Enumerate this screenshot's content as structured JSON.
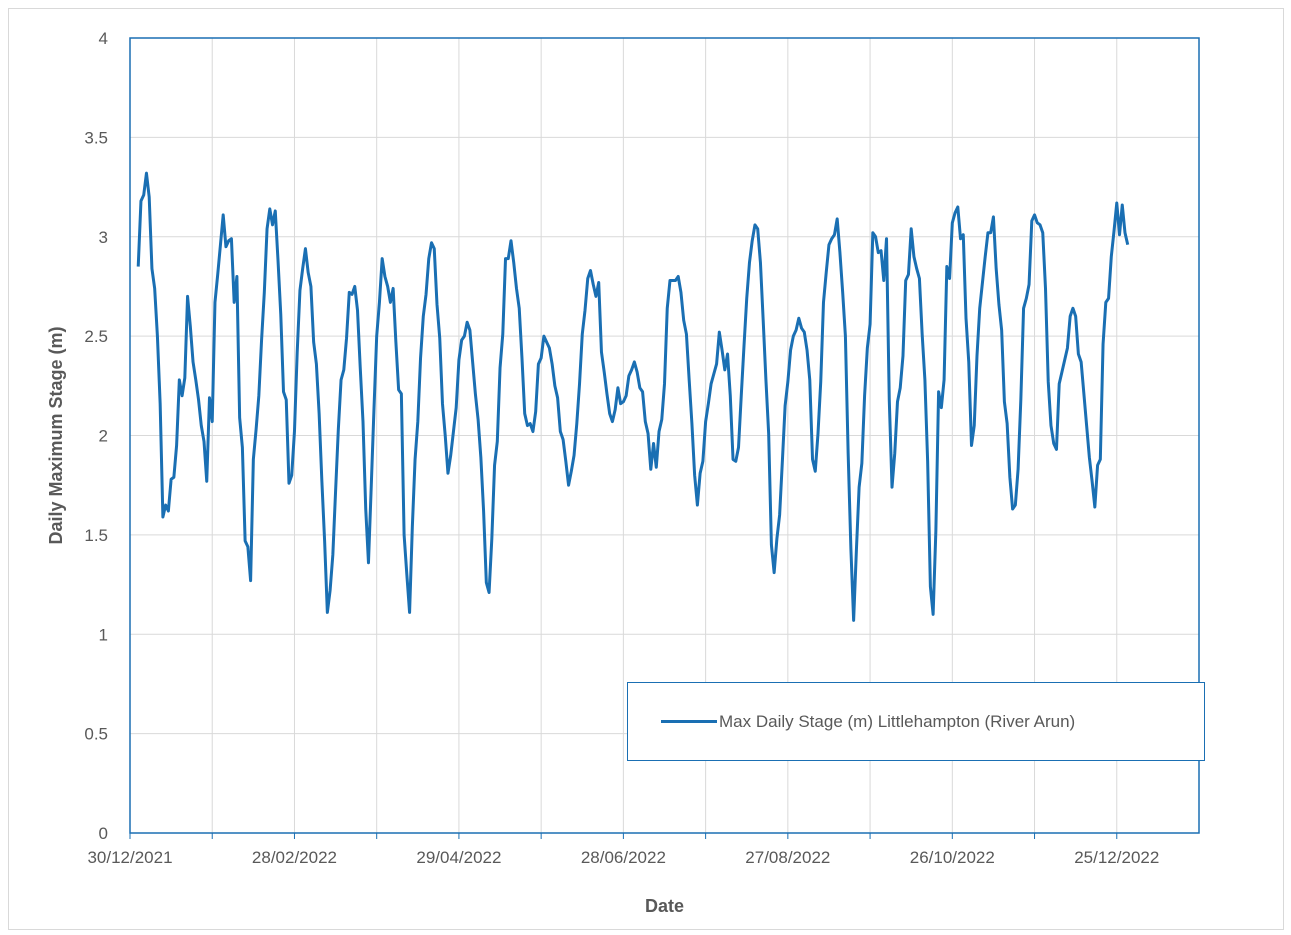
{
  "colors": {
    "series": "#1a6fb3",
    "gridline": "#d9d9d9",
    "plot_border": "#1a6fb3",
    "text": "#595959"
  },
  "chart_data": {
    "type": "line",
    "title": "",
    "xlabel": "Date",
    "ylabel": "Daily Maximum Stage (m)",
    "ylim": [
      0,
      4
    ],
    "y_ticks": [
      "0",
      "0.5",
      "1",
      "1.5",
      "2",
      "2.5",
      "3",
      "3.5",
      "4"
    ],
    "xlim": [
      "2021-12-30",
      "2023-01-24"
    ],
    "x_ticks": [
      "30/12/2021",
      "28/02/2022",
      "29/04/2022",
      "28/06/2022",
      "27/08/2022",
      "26/10/2022",
      "25/12/2022"
    ],
    "grid": "vertical and horizontal",
    "legend_position": "bottom-right",
    "series": [
      {
        "name": "Max Daily Stage (m) Littlehampton (River Arun)",
        "x": [
          "2022-01-02",
          "2022-01-03",
          "2022-01-04",
          "2022-01-05",
          "2022-01-06",
          "2022-01-07",
          "2022-01-08",
          "2022-01-09",
          "2022-01-10",
          "2022-01-11",
          "2022-01-12",
          "2022-01-13",
          "2022-01-14",
          "2022-01-15",
          "2022-01-16",
          "2022-01-17",
          "2022-01-18",
          "2022-01-19",
          "2022-01-20",
          "2022-01-21",
          "2022-01-22",
          "2022-01-23",
          "2022-01-24",
          "2022-01-25",
          "2022-01-26",
          "2022-01-27",
          "2022-01-28",
          "2022-01-29",
          "2022-01-30",
          "2022-01-31",
          "2022-02-01",
          "2022-02-02",
          "2022-02-03",
          "2022-02-04",
          "2022-02-05",
          "2022-02-06",
          "2022-02-07",
          "2022-02-08",
          "2022-02-09",
          "2022-02-10",
          "2022-02-11",
          "2022-02-12",
          "2022-02-13",
          "2022-02-14",
          "2022-02-15",
          "2022-02-16",
          "2022-02-17",
          "2022-02-18",
          "2022-02-19",
          "2022-02-20",
          "2022-02-21",
          "2022-02-22",
          "2022-02-23",
          "2022-02-24",
          "2022-02-25",
          "2022-02-26",
          "2022-02-27",
          "2022-02-28",
          "2022-03-01",
          "2022-03-02",
          "2022-03-03",
          "2022-03-04",
          "2022-03-05",
          "2022-03-06",
          "2022-03-07",
          "2022-03-08",
          "2022-03-09",
          "2022-03-10",
          "2022-03-11",
          "2022-03-12",
          "2022-03-13",
          "2022-03-14",
          "2022-03-15",
          "2022-03-16",
          "2022-03-17",
          "2022-03-18",
          "2022-03-19",
          "2022-03-20",
          "2022-03-21",
          "2022-03-22",
          "2022-03-23",
          "2022-03-24",
          "2022-03-25",
          "2022-03-26",
          "2022-03-27",
          "2022-03-28",
          "2022-03-29",
          "2022-03-30",
          "2022-03-31",
          "2022-04-01",
          "2022-04-02",
          "2022-04-03",
          "2022-04-04",
          "2022-04-05",
          "2022-04-06",
          "2022-04-07",
          "2022-04-08",
          "2022-04-09",
          "2022-04-10",
          "2022-04-11",
          "2022-04-12",
          "2022-04-13",
          "2022-04-14",
          "2022-04-15",
          "2022-04-16",
          "2022-04-17",
          "2022-04-18",
          "2022-04-19",
          "2022-04-20",
          "2022-04-21",
          "2022-04-22",
          "2022-04-23",
          "2022-04-24",
          "2022-04-25",
          "2022-04-26",
          "2022-04-27",
          "2022-04-28",
          "2022-04-29",
          "2022-04-30",
          "2022-05-01",
          "2022-05-02",
          "2022-05-03",
          "2022-05-04",
          "2022-05-05",
          "2022-05-06",
          "2022-05-07",
          "2022-05-08",
          "2022-05-09",
          "2022-05-10",
          "2022-05-11",
          "2022-05-12",
          "2022-05-13",
          "2022-05-14",
          "2022-05-15",
          "2022-05-16",
          "2022-05-17",
          "2022-05-18",
          "2022-05-19",
          "2022-05-20",
          "2022-05-21",
          "2022-05-22",
          "2022-05-23",
          "2022-05-24",
          "2022-05-25",
          "2022-05-26",
          "2022-05-27",
          "2022-05-28",
          "2022-05-29",
          "2022-05-30",
          "2022-05-31",
          "2022-06-01",
          "2022-06-02",
          "2022-06-03",
          "2022-06-04",
          "2022-06-05",
          "2022-06-06",
          "2022-06-07",
          "2022-06-08",
          "2022-06-09",
          "2022-06-10",
          "2022-06-11",
          "2022-06-12",
          "2022-06-13",
          "2022-06-14",
          "2022-06-15",
          "2022-06-16",
          "2022-06-17",
          "2022-06-18",
          "2022-06-19",
          "2022-06-20",
          "2022-06-21",
          "2022-06-22",
          "2022-06-23",
          "2022-06-24",
          "2022-06-25",
          "2022-06-26",
          "2022-06-27",
          "2022-06-28",
          "2022-06-29",
          "2022-06-30",
          "2022-07-01",
          "2022-07-02",
          "2022-07-03",
          "2022-07-04",
          "2022-07-05",
          "2022-07-06",
          "2022-07-07",
          "2022-07-08",
          "2022-07-09",
          "2022-07-10",
          "2022-07-11",
          "2022-07-12",
          "2022-07-13",
          "2022-07-14",
          "2022-07-15",
          "2022-07-16",
          "2022-07-17",
          "2022-07-18",
          "2022-07-19",
          "2022-07-20",
          "2022-07-21",
          "2022-07-22",
          "2022-07-23",
          "2022-07-24",
          "2022-07-25",
          "2022-07-26",
          "2022-07-27",
          "2022-07-28",
          "2022-07-29",
          "2022-07-30",
          "2022-07-31",
          "2022-08-01",
          "2022-08-02",
          "2022-08-03",
          "2022-08-04",
          "2022-08-05",
          "2022-08-06",
          "2022-08-07",
          "2022-08-08",
          "2022-08-09",
          "2022-08-10",
          "2022-08-11",
          "2022-08-12",
          "2022-08-13",
          "2022-08-14",
          "2022-08-15",
          "2022-08-16",
          "2022-08-17",
          "2022-08-18",
          "2022-08-19",
          "2022-08-20",
          "2022-08-21",
          "2022-08-22",
          "2022-08-23",
          "2022-08-24",
          "2022-08-25",
          "2022-08-26",
          "2022-08-27",
          "2022-08-28",
          "2022-08-29",
          "2022-08-30",
          "2022-08-31",
          "2022-09-01",
          "2022-09-02",
          "2022-09-03",
          "2022-09-04",
          "2022-09-05",
          "2022-09-06",
          "2022-09-07",
          "2022-09-08",
          "2022-09-09",
          "2022-09-10",
          "2022-09-11",
          "2022-09-12",
          "2022-09-13",
          "2022-09-14",
          "2022-09-15",
          "2022-09-16",
          "2022-09-17",
          "2022-09-18",
          "2022-09-19",
          "2022-09-20",
          "2022-09-21",
          "2022-09-22",
          "2022-09-23",
          "2022-09-24",
          "2022-09-25",
          "2022-09-26",
          "2022-09-27",
          "2022-09-28",
          "2022-09-29",
          "2022-09-30",
          "2022-10-01",
          "2022-10-02",
          "2022-10-03",
          "2022-10-04",
          "2022-10-05",
          "2022-10-06",
          "2022-10-07",
          "2022-10-08",
          "2022-10-09",
          "2022-10-10",
          "2022-10-11",
          "2022-10-12",
          "2022-10-13",
          "2022-10-14",
          "2022-10-15",
          "2022-10-16",
          "2022-10-17",
          "2022-10-18",
          "2022-10-19",
          "2022-10-20",
          "2022-10-21",
          "2022-10-22",
          "2022-10-23",
          "2022-10-24",
          "2022-10-25",
          "2022-10-26",
          "2022-10-27",
          "2022-10-28",
          "2022-10-29",
          "2022-10-30",
          "2022-10-31",
          "2022-11-01",
          "2022-11-02",
          "2022-11-03",
          "2022-11-04",
          "2022-11-05",
          "2022-11-06",
          "2022-11-07",
          "2022-11-08",
          "2022-11-09",
          "2022-11-10",
          "2022-11-11",
          "2022-11-12",
          "2022-11-13",
          "2022-11-14",
          "2022-11-15",
          "2022-11-16",
          "2022-11-17",
          "2022-11-18",
          "2022-11-19",
          "2022-11-20",
          "2022-11-21",
          "2022-11-22",
          "2022-11-23",
          "2022-11-24",
          "2022-11-25",
          "2022-11-26",
          "2022-11-27",
          "2022-11-28",
          "2022-11-29",
          "2022-11-30",
          "2022-12-01",
          "2022-12-02",
          "2022-12-03",
          "2022-12-04",
          "2022-12-05",
          "2022-12-06",
          "2022-12-07",
          "2022-12-08",
          "2022-12-09",
          "2022-12-10",
          "2022-12-11",
          "2022-12-12",
          "2022-12-13",
          "2022-12-14",
          "2022-12-15",
          "2022-12-16",
          "2022-12-17",
          "2022-12-18",
          "2022-12-19",
          "2022-12-20",
          "2022-12-21",
          "2022-12-22",
          "2022-12-23",
          "2022-12-24",
          "2022-12-25",
          "2022-12-26",
          "2022-12-27",
          "2022-12-28",
          "2022-12-29"
        ],
        "y": [
          2.85,
          3.18,
          3.21,
          3.32,
          3.2,
          2.84,
          2.74,
          2.5,
          2.16,
          1.59,
          1.65,
          1.62,
          1.78,
          1.79,
          1.95,
          2.28,
          2.2,
          2.29,
          2.7,
          2.55,
          2.37,
          2.28,
          2.18,
          2.05,
          1.97,
          1.77,
          2.19,
          2.07,
          2.67,
          2.81,
          2.96,
          3.11,
          2.95,
          2.98,
          2.99,
          2.67,
          2.8,
          2.09,
          1.94,
          1.47,
          1.44,
          1.27,
          1.88,
          2.03,
          2.2,
          2.48,
          2.72,
          3.04,
          3.14,
          3.06,
          3.13,
          2.88,
          2.61,
          2.22,
          2.18,
          1.76,
          1.8,
          2.02,
          2.42,
          2.73,
          2.84,
          2.94,
          2.82,
          2.75,
          2.47,
          2.36,
          2.11,
          1.77,
          1.47,
          1.11,
          1.22,
          1.4,
          1.72,
          2.03,
          2.28,
          2.33,
          2.49,
          2.72,
          2.71,
          2.75,
          2.63,
          2.34,
          2.07,
          1.63,
          1.36,
          1.74,
          2.13,
          2.5,
          2.67,
          2.89,
          2.8,
          2.75,
          2.67,
          2.74,
          2.47,
          2.23,
          2.21,
          1.5,
          1.3,
          1.11,
          1.54,
          1.88,
          2.07,
          2.39,
          2.6,
          2.71,
          2.89,
          2.97,
          2.94,
          2.66,
          2.49,
          2.16,
          2.0,
          1.81,
          1.9,
          2.02,
          2.14,
          2.38,
          2.48,
          2.5,
          2.57,
          2.53,
          2.37,
          2.21,
          2.08,
          1.89,
          1.62,
          1.26,
          1.21,
          1.48,
          1.85,
          1.97,
          2.34,
          2.51,
          2.89,
          2.89,
          2.98,
          2.87,
          2.74,
          2.64,
          2.39,
          2.11,
          2.05,
          2.06,
          2.02,
          2.12,
          2.36,
          2.39,
          2.5,
          2.47,
          2.44,
          2.36,
          2.25,
          2.19,
          2.02,
          1.98,
          1.87,
          1.75,
          1.82,
          1.9,
          2.06,
          2.26,
          2.51,
          2.63,
          2.79,
          2.83,
          2.76,
          2.7,
          2.77,
          2.42,
          2.32,
          2.21,
          2.11,
          2.07,
          2.13,
          2.24,
          2.16,
          2.17,
          2.2,
          2.3,
          2.33,
          2.37,
          2.32,
          2.24,
          2.22,
          2.07,
          2.01,
          1.83,
          1.96,
          1.84,
          2.02,
          2.08,
          2.26,
          2.64,
          2.78,
          2.78,
          2.78,
          2.8,
          2.72,
          2.58,
          2.51,
          2.28,
          2.06,
          1.8,
          1.65,
          1.81,
          1.87,
          2.07,
          2.16,
          2.26,
          2.31,
          2.36,
          2.52,
          2.43,
          2.33,
          2.41,
          2.2,
          1.88,
          1.87,
          1.94,
          2.2,
          2.45,
          2.69,
          2.87,
          2.98,
          3.06,
          3.04,
          2.87,
          2.58,
          2.28,
          2.01,
          1.45,
          1.31,
          1.48,
          1.6,
          1.87,
          2.15,
          2.27,
          2.43,
          2.5,
          2.53,
          2.59,
          2.54,
          2.52,
          2.43,
          2.28,
          1.88,
          1.82,
          2.01,
          2.27,
          2.67,
          2.82,
          2.96,
          2.99,
          3.01,
          3.09,
          2.92,
          2.72,
          2.5,
          1.91,
          1.43,
          1.07,
          1.42,
          1.74,
          1.86,
          2.2,
          2.44,
          2.56,
          3.02,
          3.0,
          2.92,
          2.93,
          2.78,
          2.99,
          2.18,
          1.74,
          1.91,
          2.17,
          2.24,
          2.4,
          2.78,
          2.81,
          3.04,
          2.9,
          2.84,
          2.79,
          2.51,
          2.28,
          1.87,
          1.24,
          1.1,
          1.52,
          2.22,
          2.14,
          2.28,
          2.85,
          2.79,
          3.07,
          3.12,
          3.15,
          2.99,
          3.01,
          2.59,
          2.37,
          1.95,
          2.05,
          2.4,
          2.64,
          2.77,
          2.9,
          3.02,
          3.02,
          3.1,
          2.84,
          2.66,
          2.53,
          2.17,
          2.06,
          1.79,
          1.63,
          1.65,
          1.83,
          2.18,
          2.64,
          2.69,
          2.76,
          3.08,
          3.11,
          3.07,
          3.06,
          3.02,
          2.74,
          2.27,
          2.05,
          1.96,
          1.93,
          2.26,
          2.32,
          2.38,
          2.44,
          2.6,
          2.64,
          2.6,
          2.41,
          2.37,
          2.21,
          2.05,
          1.89,
          1.77,
          1.64,
          1.85,
          1.88,
          2.46,
          2.67,
          2.69,
          2.9,
          3.03,
          3.17,
          3.01,
          3.16,
          3.02,
          2.96
        ]
      }
    ]
  }
}
